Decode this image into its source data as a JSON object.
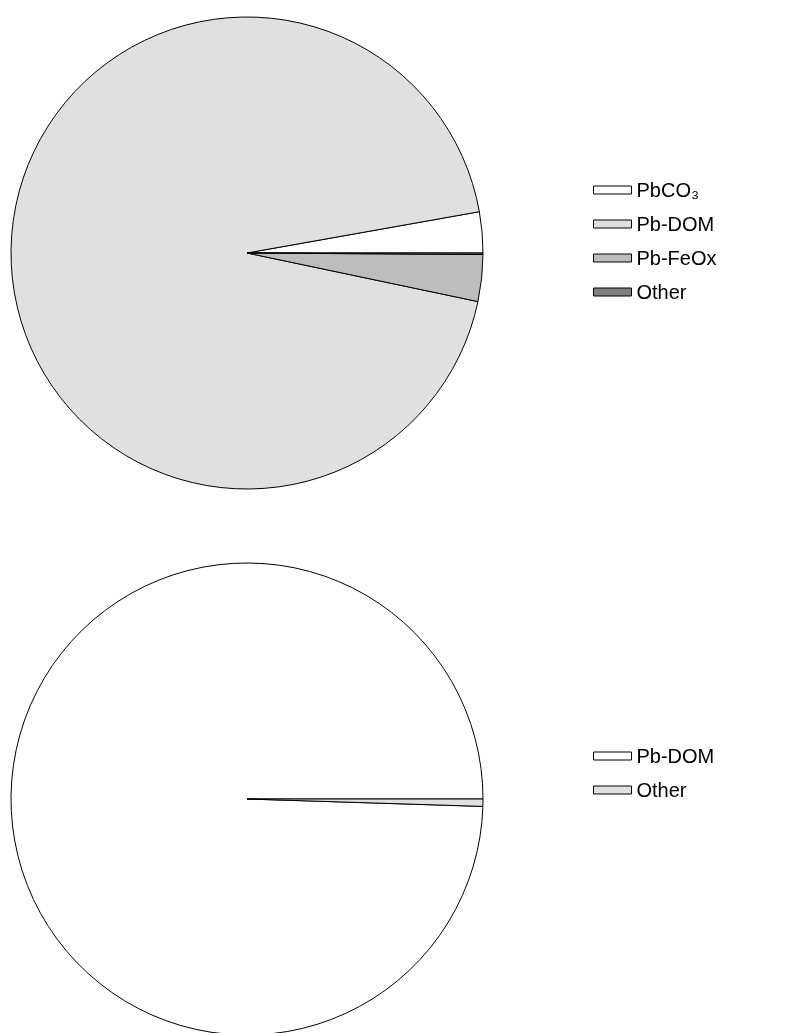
{
  "chart_data": [
    {
      "type": "pie",
      "categories": [
        "PbCO₃",
        "Pb-DOM",
        "Pb-FeOx",
        "Other"
      ],
      "values": [
        2.8,
        93.9,
        3.2,
        0.1
      ],
      "colors": [
        "#ffffff",
        "#e0e0e0",
        "#bdbdbd",
        "#808080"
      ],
      "legend": "right"
    },
    {
      "type": "pie",
      "categories": [
        "Pb-DOM",
        "Other"
      ],
      "values": [
        99.5,
        0.5
      ],
      "colors": [
        "#ffffff",
        "#e0e0e0"
      ],
      "legend": "right"
    }
  ]
}
